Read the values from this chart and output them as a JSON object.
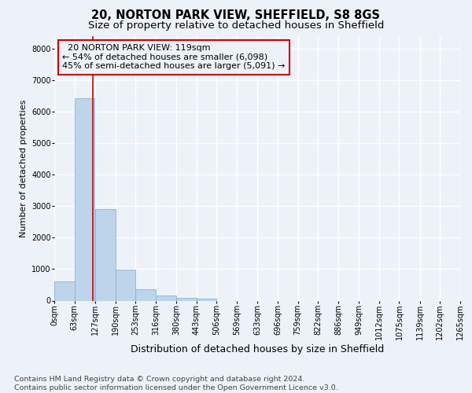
{
  "title_line1": "20, NORTON PARK VIEW, SHEFFIELD, S8 8GS",
  "title_line2": "Size of property relative to detached houses in Sheffield",
  "xlabel": "Distribution of detached houses by size in Sheffield",
  "ylabel": "Number of detached properties",
  "bar_color": "#bdd4eb",
  "bar_edge_color": "#8ab4d8",
  "annotation_line_color": "#cc0000",
  "annotation_box_color": "#cc0000",
  "annotation_text": "  20 NORTON PARK VIEW: 119sqm  \n← 54% of detached houses are smaller (6,098)\n45% of semi-detached houses are larger (5,091) →",
  "property_size_sqm": 119,
  "bin_edges": [
    0,
    63,
    127,
    190,
    253,
    316,
    380,
    443,
    506,
    569,
    633,
    696,
    759,
    822,
    886,
    949,
    1012,
    1075,
    1139,
    1202,
    1265
  ],
  "bin_labels": [
    "0sqm",
    "63sqm",
    "127sqm",
    "190sqm",
    "253sqm",
    "316sqm",
    "380sqm",
    "443sqm",
    "506sqm",
    "569sqm",
    "633sqm",
    "696sqm",
    "759sqm",
    "822sqm",
    "886sqm",
    "949sqm",
    "1012sqm",
    "1075sqm",
    "1139sqm",
    "1202sqm",
    "1265sqm"
  ],
  "bar_heights": [
    620,
    6430,
    2910,
    990,
    360,
    165,
    90,
    65,
    0,
    0,
    0,
    0,
    0,
    0,
    0,
    0,
    0,
    0,
    0,
    0
  ],
  "ylim": [
    0,
    8400
  ],
  "yticks": [
    0,
    1000,
    2000,
    3000,
    4000,
    5000,
    6000,
    7000,
    8000
  ],
  "footer_line1": "Contains HM Land Registry data © Crown copyright and database right 2024.",
  "footer_line2": "Contains public sector information licensed under the Open Government Licence v3.0.",
  "background_color": "#edf2f9",
  "grid_color": "#ffffff",
  "title_fontsize": 10.5,
  "subtitle_fontsize": 9.5,
  "xlabel_fontsize": 9,
  "ylabel_fontsize": 8,
  "tick_fontsize": 7,
  "annotation_fontsize": 8,
  "footer_fontsize": 6.8
}
